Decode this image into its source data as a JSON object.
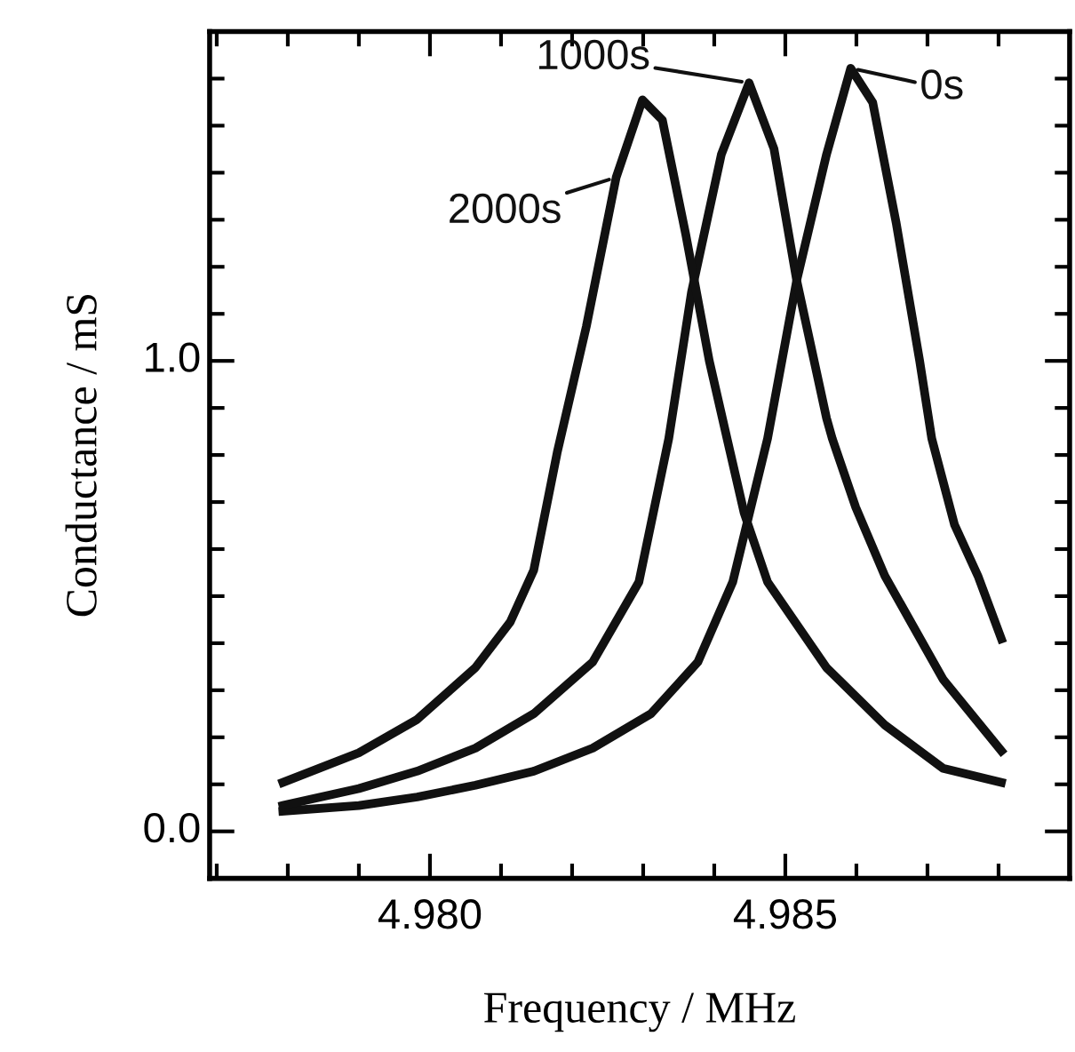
{
  "chart_data": {
    "type": "line",
    "xlabel": "Frequency / MHz",
    "ylabel": "Conductance / mS",
    "xlim": [
      4.9769,
      4.989
    ],
    "ylim": [
      -0.1,
      1.7
    ],
    "xticks": [
      {
        "value": 4.977,
        "label": null
      },
      {
        "value": 4.978,
        "label": null
      },
      {
        "value": 4.979,
        "label": null
      },
      {
        "value": 4.98,
        "label": "4.980"
      },
      {
        "value": 4.981,
        "label": null
      },
      {
        "value": 4.982,
        "label": null
      },
      {
        "value": 4.983,
        "label": null
      },
      {
        "value": 4.984,
        "label": null
      },
      {
        "value": 4.985,
        "label": "4.985"
      },
      {
        "value": 4.986,
        "label": null
      },
      {
        "value": 4.987,
        "label": null
      },
      {
        "value": 4.988,
        "label": null
      }
    ],
    "yticks": [
      {
        "value": 0,
        "label": "0.0"
      },
      {
        "value": 0.1,
        "label": null
      },
      {
        "value": 0.2,
        "label": null
      },
      {
        "value": 0.3,
        "label": null
      },
      {
        "value": 0.4,
        "label": null
      },
      {
        "value": 0.5,
        "label": null
      },
      {
        "value": 0.6,
        "label": null
      },
      {
        "value": 0.7,
        "label": null
      },
      {
        "value": 0.8,
        "label": null
      },
      {
        "value": 0.9,
        "label": null
      },
      {
        "value": 1,
        "label": "1.0"
      },
      {
        "value": 1.1,
        "label": null
      },
      {
        "value": 1.2,
        "label": null
      },
      {
        "value": 1.3,
        "label": null
      },
      {
        "value": 1.4,
        "label": null
      },
      {
        "value": 1.5,
        "label": null
      },
      {
        "value": 1.6,
        "label": null
      }
    ],
    "line_style": "solid",
    "grid": false,
    "series": [
      {
        "name": "0s",
        "color": "#111111",
        "x": [
          4.97793,
          4.979,
          4.97982,
          4.98064,
          4.98146,
          4.98229,
          4.98311,
          4.98377,
          4.98426,
          4.98475,
          4.98516,
          4.98558,
          4.98592,
          4.98623,
          4.98656,
          4.98689,
          4.98706,
          4.98738,
          4.98771,
          4.98804
        ],
        "values": [
          0.043,
          0.055,
          0.073,
          0.098,
          0.128,
          0.177,
          0.25,
          0.36,
          0.53,
          0.835,
          1.171,
          1.439,
          1.622,
          1.549,
          1.293,
          1.0,
          0.835,
          0.652,
          0.543,
          0.409
        ]
      },
      {
        "name": "1000s",
        "color": "#111111",
        "x": [
          4.97793,
          4.979,
          4.97982,
          4.98064,
          4.98146,
          4.98229,
          4.98294,
          4.98336,
          4.98368,
          4.9841,
          4.98449,
          4.98484,
          4.98516,
          4.98558,
          4.98566,
          4.98599,
          4.9864,
          4.98722,
          4.98804
        ],
        "values": [
          0.055,
          0.091,
          0.128,
          0.177,
          0.25,
          0.36,
          0.53,
          0.835,
          1.146,
          1.439,
          1.591,
          1.451,
          1.171,
          0.878,
          0.835,
          0.689,
          0.543,
          0.323,
          0.171
        ]
      },
      {
        "name": "2000s",
        "color": "#111111",
        "x": [
          4.97793,
          4.979,
          4.97982,
          4.98064,
          4.98113,
          4.98146,
          4.98179,
          4.9822,
          4.98262,
          4.98299,
          4.98327,
          4.9836,
          4.98393,
          4.98418,
          4.98442,
          4.98475,
          4.98558,
          4.9864,
          4.98722,
          4.98804
        ],
        "values": [
          0.104,
          0.167,
          0.238,
          0.348,
          0.445,
          0.555,
          0.805,
          1.073,
          1.39,
          1.555,
          1.512,
          1.268,
          1.0,
          0.835,
          0.677,
          0.53,
          0.348,
          0.226,
          0.134,
          0.104
        ]
      }
    ]
  }
}
